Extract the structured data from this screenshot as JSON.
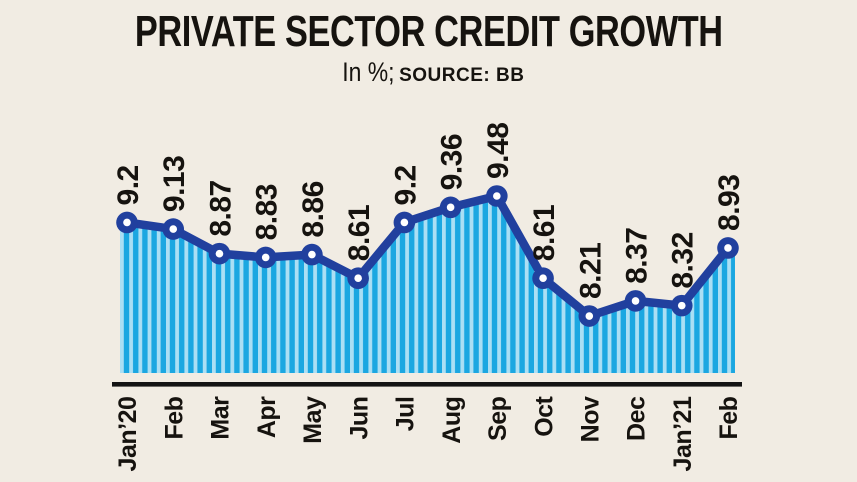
{
  "title": "PRIVATE SECTOR CREDIT GROWTH",
  "subtitle": {
    "unit": "In %;",
    "source": "SOURCE: BB"
  },
  "colors": {
    "background": "#F1ECE3",
    "text": "#16130F",
    "line": "#21409E",
    "marker_ring": "#21409E",
    "marker_center": "#FFFFFF",
    "stripe_dark": "#1BA7E1",
    "stripe_light": "#ABDFF4",
    "axis_line": "#141414"
  },
  "chart_data": {
    "type": "line",
    "title": "PRIVATE SECTOR CREDIT GROWTH",
    "subtitle": "In %; SOURCE: BB",
    "unit": "%",
    "source": "BB",
    "categories": [
      "Jan’20",
      "Feb",
      "Mar",
      "Apr",
      "May",
      "Jun",
      "Jul",
      "Aug",
      "Sep",
      "Oct",
      "Nov",
      "Dec",
      "Jan’21",
      "Feb"
    ],
    "values": [
      9.2,
      9.13,
      8.87,
      8.83,
      8.86,
      8.61,
      9.2,
      9.36,
      9.48,
      8.61,
      8.21,
      8.37,
      8.32,
      8.93
    ],
    "point_labels": [
      "9.2",
      "9.13",
      "8.87",
      "8.83",
      "8.86",
      "8.61",
      "9.2",
      "9.36",
      "9.48",
      "8.61",
      "8.21",
      "8.37",
      "8.32",
      "8.93"
    ],
    "xlabel": "",
    "ylabel": "",
    "ylim": [
      7.48,
      9.9
    ],
    "grid": false,
    "legend": false,
    "y_axis_visible": false,
    "style": {
      "area_fill": "vertical-stripes",
      "marker": "ring-dot",
      "value_label_rotation": -90,
      "x_label_rotation": -90
    }
  }
}
